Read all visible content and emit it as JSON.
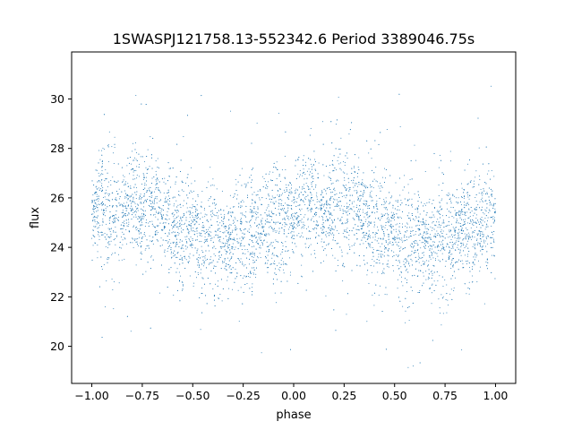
{
  "chart_data": {
    "type": "scatter",
    "title": "1SWASPJ121758.13-552342.6 Period 3389046.75s",
    "xlabel": "phase",
    "ylabel": "flux",
    "xlim": [
      -1.1,
      1.1
    ],
    "ylim": [
      18.5,
      31.9
    ],
    "x_ticks": [
      -1.0,
      -0.75,
      -0.5,
      -0.25,
      0.0,
      0.25,
      0.5,
      0.75,
      1.0
    ],
    "x_tick_labels": [
      "−1.00",
      "−0.75",
      "−0.50",
      "−0.25",
      "0.00",
      "0.25",
      "0.50",
      "0.75",
      "1.00"
    ],
    "y_ticks": [
      20,
      22,
      24,
      26,
      28,
      30
    ],
    "y_tick_labels": [
      "20",
      "22",
      "24",
      "26",
      "28",
      "30"
    ],
    "grid": false,
    "marker_color": "#1f77b4",
    "series": [
      {
        "x": [
          -1.0,
          -0.95,
          -0.9,
          -0.85,
          -0.8,
          -0.75,
          -0.7,
          -0.65,
          -0.6,
          -0.55,
          -0.5,
          -0.45,
          -0.4,
          -0.35,
          -0.3,
          -0.25,
          -0.2,
          -0.15,
          -0.1,
          -0.05,
          0.0,
          0.05,
          0.1,
          0.15,
          0.2,
          0.25,
          0.3,
          0.35,
          0.4,
          0.45,
          0.5,
          0.55,
          0.6,
          0.65,
          0.7,
          0.75,
          0.8,
          0.85,
          0.9,
          0.95,
          1.0
        ],
        "y": [
          25.3,
          25.8,
          25.6,
          25.2,
          25.9,
          25.5,
          25.8,
          25.4,
          25.0,
          24.6,
          24.9,
          24.0,
          24.4,
          24.2,
          24.1,
          24.3,
          24.5,
          24.7,
          24.9,
          25.0,
          25.3,
          25.8,
          25.6,
          25.2,
          25.9,
          25.5,
          25.8,
          25.4,
          25.0,
          24.6,
          24.9,
          24.0,
          24.4,
          24.2,
          24.1,
          24.3,
          24.5,
          24.7,
          24.9,
          25.0,
          25.3
        ]
      }
    ]
  }
}
